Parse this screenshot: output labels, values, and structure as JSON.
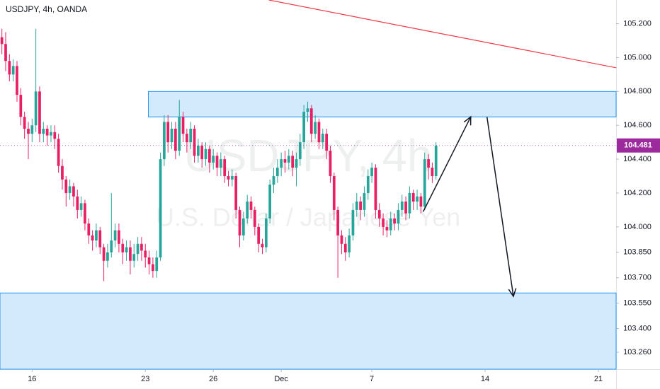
{
  "chart_data": {
    "type": "candlestick",
    "title": "USDJPY, 4h, OANDA",
    "watermark": [
      "USDJPY, 4h",
      "U.S. Dollar / Japanese Yen"
    ],
    "up_color": "#26a69a",
    "down_color": "#e91e63",
    "candles": [
      [
        105.12,
        105.17,
        105.02,
        105.08
      ],
      [
        105.08,
        105.15,
        104.92,
        104.98
      ],
      [
        104.98,
        105.02,
        104.86,
        104.9
      ],
      [
        104.9,
        104.99,
        104.86,
        104.95
      ],
      [
        104.95,
        104.98,
        104.74,
        104.78
      ],
      [
        104.78,
        104.82,
        104.6,
        104.65
      ],
      [
        104.65,
        104.68,
        104.52,
        104.58
      ],
      [
        104.58,
        104.62,
        104.4,
        104.55
      ],
      [
        104.55,
        104.64,
        104.5,
        104.6
      ],
      [
        104.6,
        105.17,
        104.56,
        104.8
      ],
      [
        104.8,
        104.83,
        104.5,
        104.55
      ],
      [
        104.55,
        104.62,
        104.5,
        104.58
      ],
      [
        104.58,
        104.6,
        104.48,
        104.54
      ],
      [
        104.54,
        104.6,
        104.5,
        104.56
      ],
      [
        104.56,
        104.6,
        104.46,
        104.52
      ],
      [
        104.52,
        104.55,
        104.32,
        104.36
      ],
      [
        104.36,
        104.4,
        104.22,
        104.28
      ],
      [
        104.28,
        104.3,
        104.12,
        104.2
      ],
      [
        104.2,
        104.28,
        104.16,
        104.24
      ],
      [
        104.24,
        104.26,
        104.12,
        104.18
      ],
      [
        104.18,
        104.22,
        104.05,
        104.1
      ],
      [
        104.1,
        104.18,
        104.06,
        104.14
      ],
      [
        104.14,
        104.16,
        103.98,
        104.02
      ],
      [
        104.02,
        104.05,
        103.9,
        103.95
      ],
      [
        103.95,
        103.98,
        103.86,
        103.92
      ],
      [
        103.92,
        104.02,
        103.88,
        103.98
      ],
      [
        103.98,
        104.0,
        103.84,
        103.88
      ],
      [
        103.88,
        103.9,
        103.68,
        103.8
      ],
      [
        103.8,
        103.9,
        103.76,
        103.85
      ],
      [
        103.85,
        104.2,
        103.82,
        103.92
      ],
      [
        103.92,
        104.02,
        103.88,
        103.98
      ],
      [
        103.98,
        104.02,
        103.85,
        103.9
      ],
      [
        103.9,
        103.93,
        103.78,
        103.85
      ],
      [
        103.85,
        103.92,
        103.8,
        103.88
      ],
      [
        103.88,
        103.92,
        103.72,
        103.8
      ],
      [
        103.8,
        103.9,
        103.76,
        103.84
      ],
      [
        103.84,
        103.94,
        103.8,
        103.9
      ],
      [
        103.9,
        103.94,
        103.8,
        103.86
      ],
      [
        103.86,
        103.9,
        103.76,
        103.82
      ],
      [
        103.82,
        103.86,
        103.72,
        103.78
      ],
      [
        103.78,
        103.82,
        103.7,
        103.74
      ],
      [
        103.74,
        103.86,
        103.7,
        103.82
      ],
      [
        103.82,
        104.44,
        103.8,
        104.4
      ],
      [
        104.4,
        104.66,
        104.36,
        104.62
      ],
      [
        104.62,
        104.66,
        104.44,
        104.5
      ],
      [
        104.5,
        104.62,
        104.46,
        104.58
      ],
      [
        104.58,
        104.62,
        104.4,
        104.45
      ],
      [
        104.45,
        104.75,
        104.42,
        104.65
      ],
      [
        104.65,
        104.68,
        104.5,
        104.55
      ],
      [
        104.55,
        104.58,
        104.44,
        104.5
      ],
      [
        104.5,
        104.62,
        104.46,
        104.58
      ],
      [
        104.58,
        104.6,
        104.38,
        104.42
      ],
      [
        104.42,
        104.52,
        104.38,
        104.48
      ],
      [
        104.48,
        104.5,
        104.35,
        104.4
      ],
      [
        104.4,
        104.5,
        104.36,
        104.46
      ],
      [
        104.46,
        104.48,
        104.32,
        104.38
      ],
      [
        104.38,
        104.46,
        104.34,
        104.42
      ],
      [
        104.42,
        104.44,
        104.3,
        104.35
      ],
      [
        104.35,
        104.44,
        104.3,
        104.4
      ],
      [
        104.4,
        104.42,
        104.26,
        104.3
      ],
      [
        104.3,
        104.33,
        104.24,
        104.28
      ],
      [
        104.28,
        104.34,
        104.24,
        104.3
      ],
      [
        104.3,
        104.32,
        104.05,
        104.1
      ],
      [
        104.1,
        104.12,
        103.88,
        103.95
      ],
      [
        103.95,
        104.09,
        103.92,
        104.05
      ],
      [
        104.05,
        104.19,
        104.02,
        104.15
      ],
      [
        104.15,
        104.18,
        104.05,
        104.1
      ],
      [
        104.1,
        104.12,
        103.95,
        104.0
      ],
      [
        104.0,
        104.02,
        103.85,
        103.9
      ],
      [
        103.9,
        103.93,
        103.84,
        103.88
      ],
      [
        103.88,
        104.08,
        103.85,
        104.05
      ],
      [
        104.05,
        104.28,
        104.02,
        104.25
      ],
      [
        104.25,
        104.35,
        104.2,
        104.3
      ],
      [
        104.3,
        104.4,
        104.26,
        104.35
      ],
      [
        104.35,
        104.44,
        104.3,
        104.4
      ],
      [
        104.4,
        104.45,
        104.32,
        104.38
      ],
      [
        104.38,
        104.46,
        104.34,
        104.42
      ],
      [
        104.42,
        104.45,
        104.3,
        104.35
      ],
      [
        104.35,
        104.44,
        104.24,
        104.4
      ],
      [
        104.4,
        104.55,
        104.36,
        104.5
      ],
      [
        104.5,
        104.72,
        104.46,
        104.68
      ],
      [
        104.68,
        104.74,
        104.62,
        104.7
      ],
      [
        104.7,
        104.72,
        104.5,
        104.55
      ],
      [
        104.55,
        104.66,
        104.52,
        104.62
      ],
      [
        104.62,
        104.64,
        104.46,
        104.5
      ],
      [
        104.5,
        104.58,
        104.46,
        104.55
      ],
      [
        104.55,
        104.58,
        104.4,
        104.45
      ],
      [
        104.45,
        104.48,
        104.26,
        104.3
      ],
      [
        104.3,
        104.32,
        104.04,
        104.1
      ],
      [
        104.1,
        104.12,
        103.7,
        103.95
      ],
      [
        103.95,
        103.98,
        103.84,
        103.9
      ],
      [
        103.9,
        103.94,
        103.8,
        103.85
      ],
      [
        103.85,
        103.99,
        103.82,
        103.95
      ],
      [
        103.95,
        104.14,
        103.92,
        104.1
      ],
      [
        104.1,
        104.2,
        104.06,
        104.15
      ],
      [
        104.15,
        104.18,
        104.04,
        104.1
      ],
      [
        104.1,
        104.24,
        104.06,
        104.2
      ],
      [
        104.2,
        104.34,
        104.16,
        104.3
      ],
      [
        104.3,
        104.38,
        104.26,
        104.35
      ],
      [
        104.35,
        104.37,
        104.05,
        104.1
      ],
      [
        104.1,
        104.14,
        104.0,
        104.05
      ],
      [
        104.05,
        104.08,
        103.95,
        104.0
      ],
      [
        104.0,
        104.04,
        103.94,
        103.98
      ],
      [
        103.98,
        104.09,
        103.95,
        104.05
      ],
      [
        104.05,
        104.08,
        103.98,
        104.02
      ],
      [
        104.02,
        104.14,
        103.98,
        104.1
      ],
      [
        104.1,
        104.19,
        104.06,
        104.15
      ],
      [
        104.15,
        104.18,
        104.04,
        104.08
      ],
      [
        104.08,
        104.24,
        104.05,
        104.2
      ],
      [
        104.2,
        104.22,
        104.1,
        104.15
      ],
      [
        104.15,
        104.22,
        104.1,
        104.18
      ],
      [
        104.18,
        104.2,
        104.08,
        104.12
      ],
      [
        104.12,
        104.44,
        104.1,
        104.4
      ],
      [
        104.4,
        104.43,
        104.28,
        104.35
      ],
      [
        104.35,
        104.38,
        104.26,
        104.3
      ],
      [
        104.3,
        104.5,
        104.28,
        104.48
      ]
    ],
    "xlim": [
      -0.5,
      162.7
    ],
    "xticks": [
      {
        "value": 8,
        "label": "16"
      },
      {
        "value": 38,
        "label": "23"
      },
      {
        "value": 56,
        "label": "26"
      },
      {
        "value": 74,
        "label": "Dec"
      },
      {
        "value": 98,
        "label": "7"
      },
      {
        "value": 128,
        "label": "14"
      },
      {
        "value": 158,
        "label": "21"
      }
    ],
    "ylim": [
      103.16,
      105.34
    ],
    "yticks": [
      {
        "value": 105.2,
        "label": "105.200"
      },
      {
        "value": 105.0,
        "label": "105.000"
      },
      {
        "value": 104.8,
        "label": "104.800"
      },
      {
        "value": 104.6,
        "label": "104.600"
      },
      {
        "value": 104.4,
        "label": "104.400"
      },
      {
        "value": 104.2,
        "label": "104.200"
      },
      {
        "value": 104.0,
        "label": "104.000"
      },
      {
        "value": 103.85,
        "label": "103.850"
      },
      {
        "value": 103.7,
        "label": "103.700"
      },
      {
        "value": 103.55,
        "label": "103.550"
      },
      {
        "value": 103.4,
        "label": "103.400"
      },
      {
        "value": 103.26,
        "label": "103.260"
      }
    ],
    "last_price": 104.481,
    "last_price_color": "#9c2a9c",
    "zones": [
      {
        "x": [
          38.8,
          162.7
        ],
        "y": [
          104.65,
          104.8
        ]
      },
      {
        "x": [
          -0.5,
          162.7
        ],
        "y": [
          103.16,
          103.61
        ]
      }
    ],
    "trendline": [
      [
        70.7,
        105.34
      ],
      [
        162.7,
        104.94
      ]
    ],
    "arrows": [
      [
        [
          111.6,
          104.09
        ],
        [
          124.2,
          104.65
        ]
      ],
      [
        [
          128.5,
          104.65
        ],
        [
          135.5,
          103.59
        ]
      ]
    ]
  }
}
